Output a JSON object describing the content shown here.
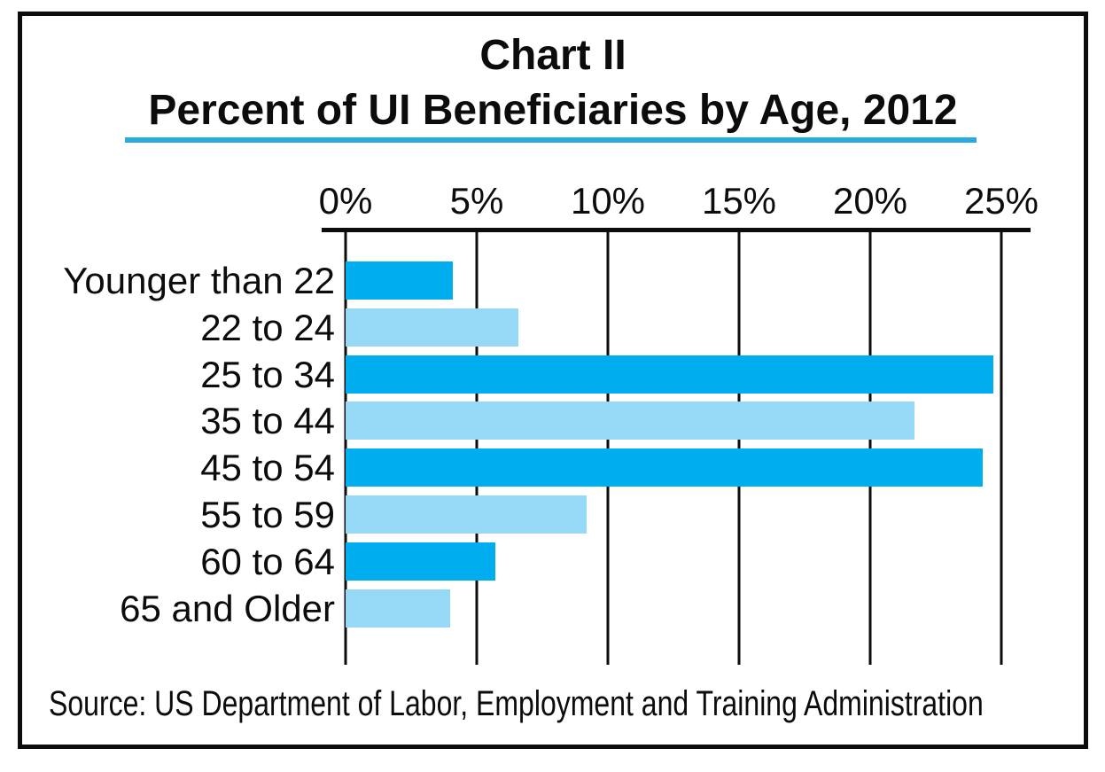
{
  "chart_data": {
    "type": "bar",
    "orientation": "horizontal",
    "title_line1": "Chart II",
    "title_line2": "Percent of UI Beneficiaries by Age, 2012",
    "categories": [
      "Younger than 22",
      "22 to 24",
      "25 to 34",
      "35 to 44",
      "45 to 54",
      "55 to 59",
      "60 to 64",
      "65 and Older"
    ],
    "values": [
      4.1,
      6.6,
      24.7,
      21.7,
      24.3,
      9.2,
      5.7,
      4.0
    ],
    "unit": "%",
    "x_ticks": [
      "0%",
      "5%",
      "10%",
      "15%",
      "20%",
      "25%"
    ],
    "x_tick_values": [
      0,
      5,
      10,
      15,
      20,
      25
    ],
    "xlim": [
      0,
      25
    ],
    "gridlines": true,
    "legend": "none",
    "bar_colors_alternating": [
      "#00AEEF",
      "#96D9F7"
    ],
    "accent_underline_color": "#29ABE2",
    "axis_color": "#0c0c0c",
    "source": "Source: US Department of Labor, Employment and Training Administration"
  }
}
